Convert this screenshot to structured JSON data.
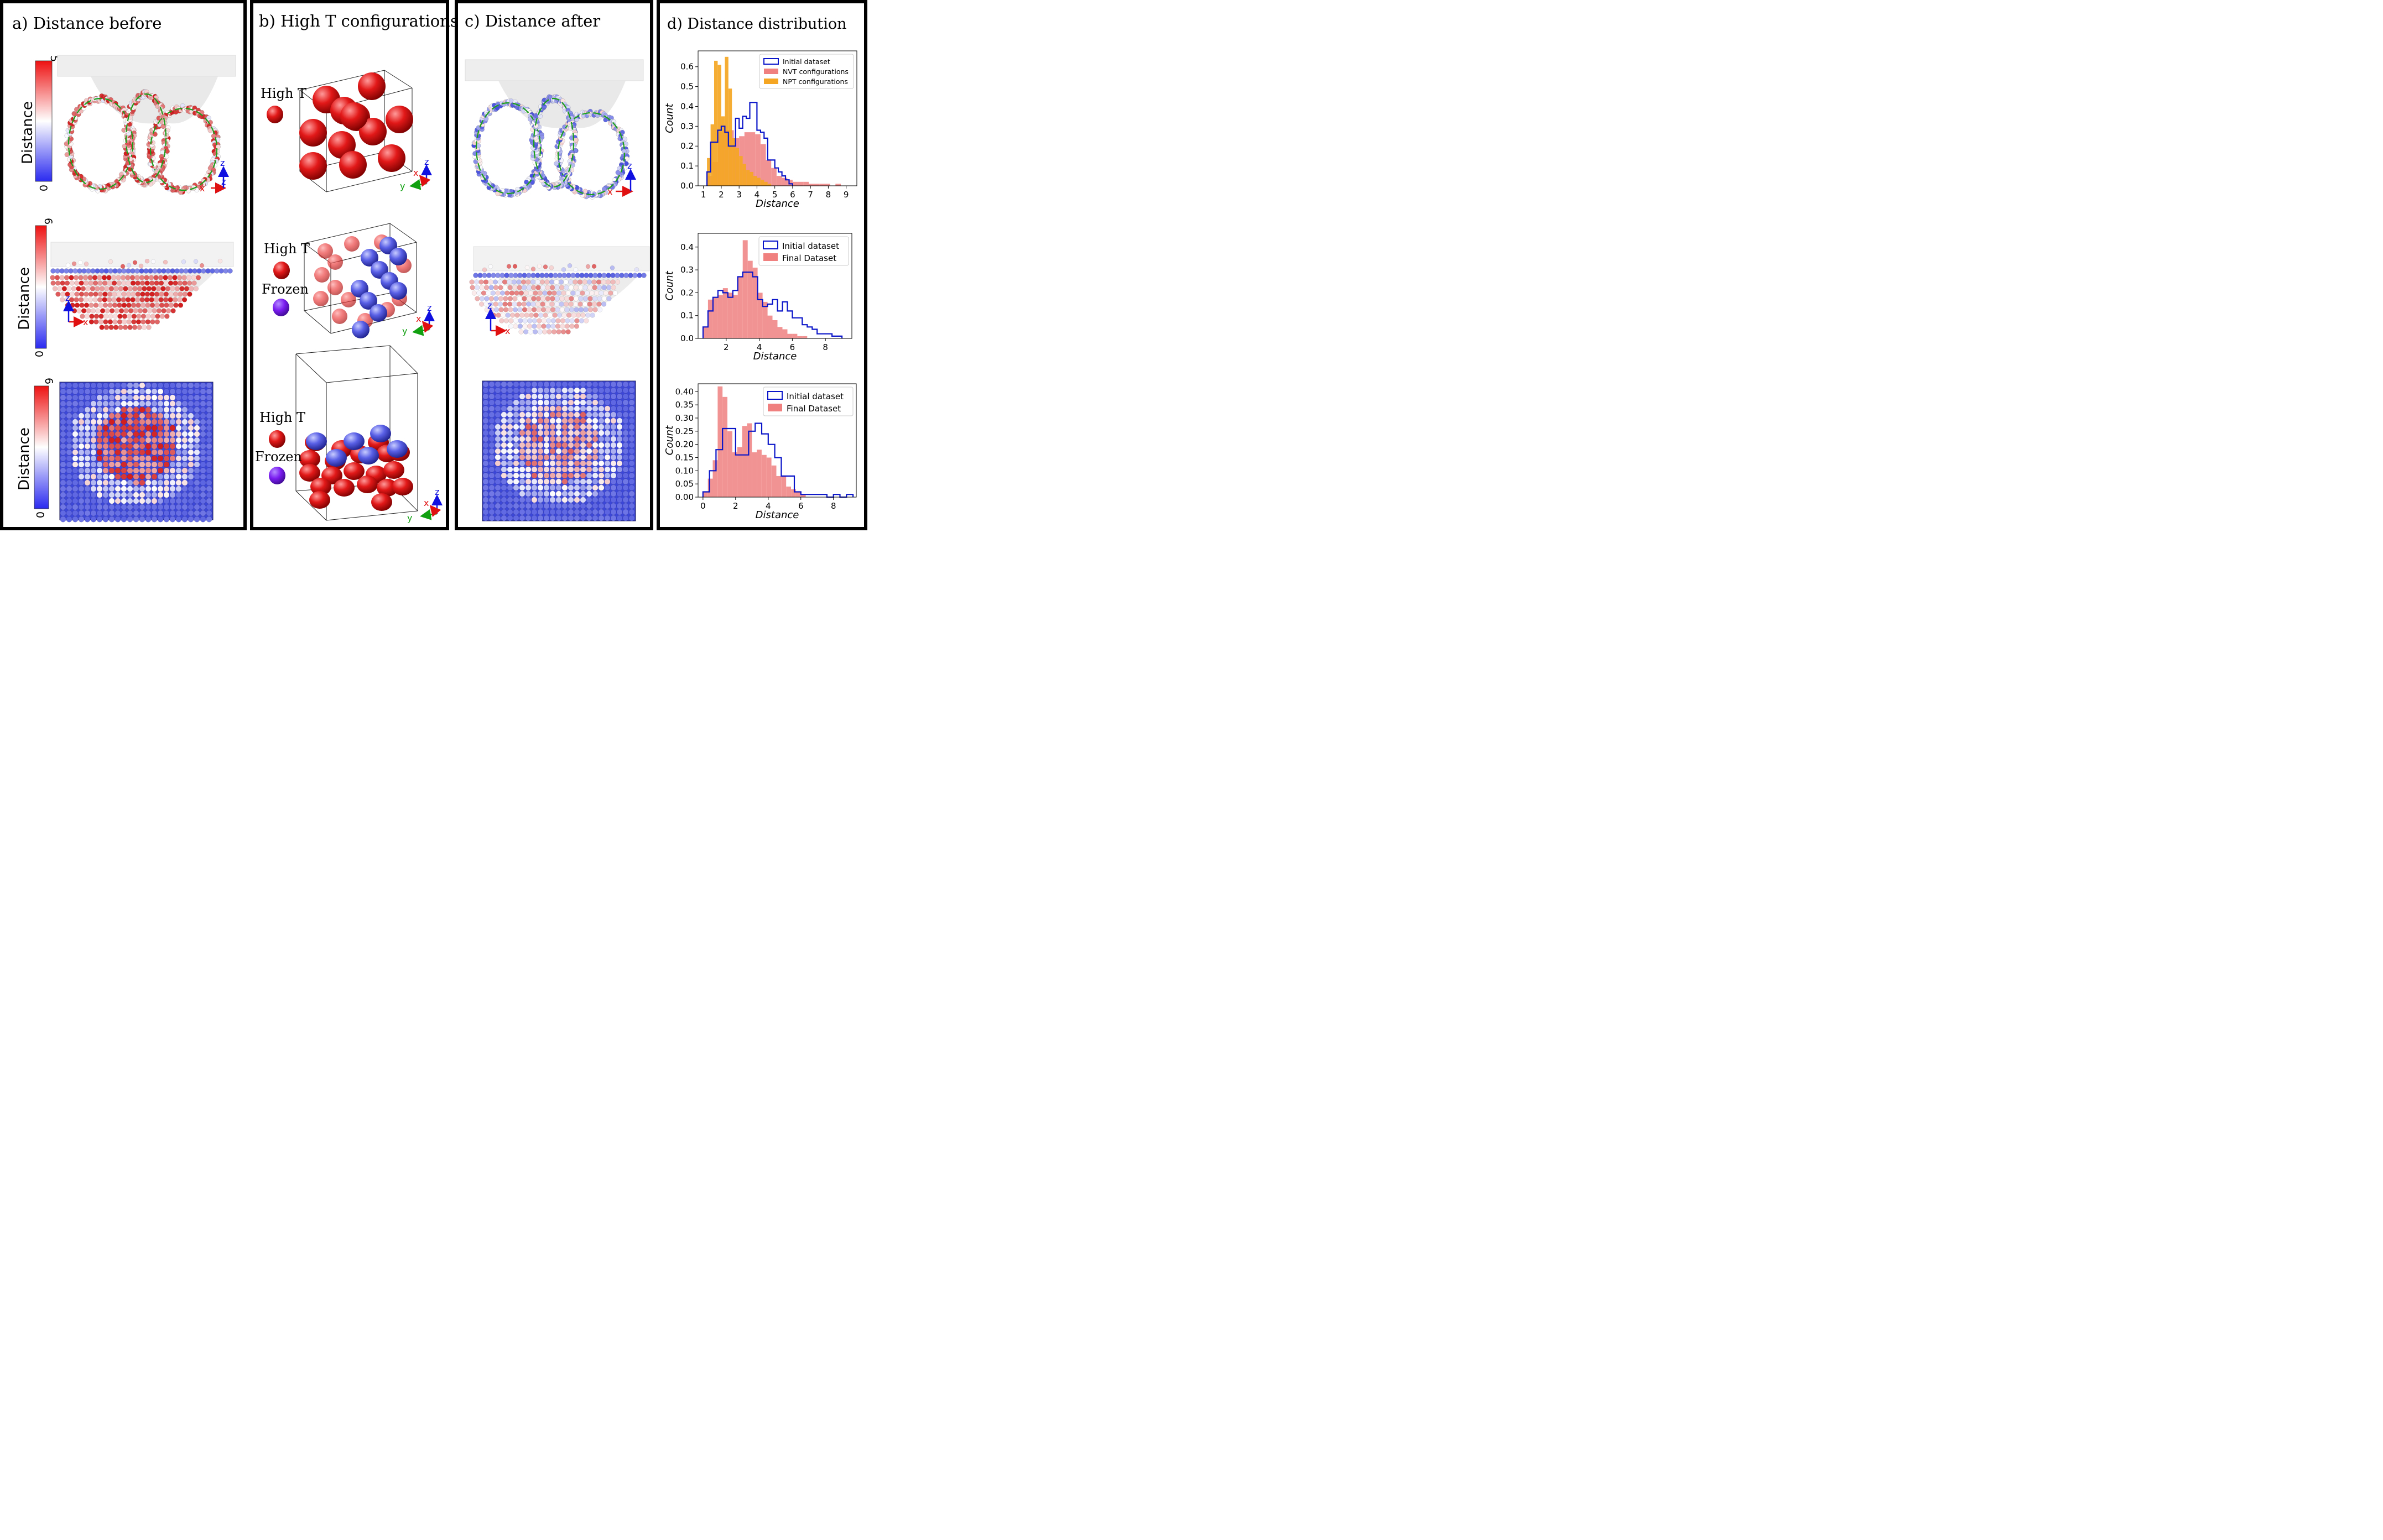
{
  "panels": {
    "a": {
      "title": "a) Distance before"
    },
    "b": {
      "title": "b) High T configurations"
    },
    "c": {
      "title": "c) Distance after"
    },
    "d": {
      "title": "d) Distance distribution"
    }
  },
  "colorbars": [
    {
      "label": "Distance",
      "min": "0",
      "max": "5"
    },
    {
      "label": "Distance",
      "min": "0",
      "max": "6"
    },
    {
      "label": "Distance",
      "min": "0",
      "max": "6"
    }
  ],
  "axes_labels": {
    "x": "x",
    "y": "y",
    "z": "z"
  },
  "legend_b": {
    "high_t": "High T",
    "frozen": "Frozen",
    "high_t_color": "#dd1111",
    "frozen_color": "#7a1cf0"
  },
  "colors": {
    "initial": "#0a14c8",
    "nvt": "#f08080",
    "npt": "#f5a623",
    "final": "#f08080",
    "atom_red": "#d42020",
    "atom_blue": "#5a5ee0",
    "substrate_blue": "#3c47d8"
  },
  "chart_data": [
    {
      "type": "histogram",
      "xlabel": "Distance",
      "ylabel": "Count",
      "xlim": [
        0.7,
        9.6
      ],
      "ylim": [
        0,
        0.68
      ],
      "xticks": [
        1,
        2,
        3,
        4,
        5,
        6,
        7,
        8,
        9
      ],
      "yticks": [
        0.0,
        0.1,
        0.2,
        0.3,
        0.4,
        0.5,
        0.6
      ],
      "ytick_labels": [
        "0.0",
        "0.1",
        "0.2",
        "0.3",
        "0.4",
        "0.5",
        "0.6"
      ],
      "legend_position": "top-right",
      "series": [
        {
          "name": "Initial dataset",
          "style": "step",
          "bin_edges": [
            1.2,
            1.4,
            1.6,
            1.8,
            2.0,
            2.2,
            2.4,
            2.6,
            2.8,
            3.0,
            3.2,
            3.4,
            3.6,
            3.8,
            4.0,
            4.2,
            4.4,
            4.6,
            4.8,
            5.0,
            5.2,
            5.4,
            5.6,
            5.8,
            6.0
          ],
          "values": [
            0.07,
            0.22,
            0.22,
            0.28,
            0.3,
            0.27,
            0.2,
            0.2,
            0.34,
            0.29,
            0.35,
            0.34,
            0.42,
            0.42,
            0.28,
            0.27,
            0.24,
            0.13,
            0.13,
            0.09,
            0.07,
            0.05,
            0.03,
            0.01
          ]
        },
        {
          "name": "NVT configurations",
          "style": "fill",
          "bin_edges": [
            1.2,
            1.5,
            1.8,
            2.1,
            2.4,
            2.7,
            3.0,
            3.3,
            3.6,
            3.9,
            4.2,
            4.5,
            4.8,
            5.1,
            5.4,
            5.7,
            6.0,
            6.3,
            6.6,
            6.9,
            7.2,
            7.5,
            7.8,
            8.1,
            8.4,
            8.7,
            9.0
          ],
          "values": [
            0.05,
            0.12,
            0.27,
            0.28,
            0.28,
            0.24,
            0.25,
            0.27,
            0.27,
            0.26,
            0.21,
            0.13,
            0.09,
            0.05,
            0.04,
            0.03,
            0.02,
            0.02,
            0.02,
            0.01,
            0.01,
            0.01,
            0.01,
            0.0,
            0.01,
            0.0
          ]
        },
        {
          "name": "NPT configurations",
          "style": "fill",
          "bin_edges": [
            1.2,
            1.4,
            1.6,
            1.8,
            2.0,
            2.2,
            2.4,
            2.6,
            2.8,
            3.0,
            3.2,
            3.4,
            3.6,
            3.8,
            4.0,
            4.2,
            4.4,
            4.6,
            4.8
          ],
          "values": [
            0.14,
            0.31,
            0.63,
            0.61,
            0.35,
            0.65,
            0.49,
            0.24,
            0.19,
            0.15,
            0.11,
            0.08,
            0.07,
            0.05,
            0.04,
            0.03,
            0.02,
            0.01
          ]
        }
      ]
    },
    {
      "type": "histogram",
      "xlabel": "Distance",
      "ylabel": "Count",
      "xlim": [
        0.3,
        9.6
      ],
      "ylim": [
        0,
        0.46
      ],
      "xticks": [
        2,
        4,
        6,
        8
      ],
      "yticks": [
        0.0,
        0.1,
        0.2,
        0.3,
        0.4
      ],
      "ytick_labels": [
        "0.0",
        "0.1",
        "0.2",
        "0.3",
        "0.4"
      ],
      "legend_position": "top-right",
      "series": [
        {
          "name": "Initial dataset",
          "style": "step",
          "bin_edges": [
            0.6,
            0.9,
            1.2,
            1.5,
            1.8,
            2.1,
            2.4,
            2.7,
            3.0,
            3.3,
            3.6,
            3.9,
            4.2,
            4.5,
            4.8,
            5.1,
            5.4,
            5.7,
            6.0,
            6.3,
            6.6,
            6.9,
            7.2,
            7.5,
            7.8,
            8.1,
            8.4,
            8.7,
            9.0
          ],
          "values": [
            0.05,
            0.12,
            0.18,
            0.21,
            0.2,
            0.18,
            0.21,
            0.27,
            0.29,
            0.29,
            0.27,
            0.17,
            0.14,
            0.15,
            0.17,
            0.12,
            0.16,
            0.12,
            0.09,
            0.09,
            0.06,
            0.05,
            0.04,
            0.02,
            0.02,
            0.02,
            0.01,
            0.01
          ]
        },
        {
          "name": "Final Dataset",
          "style": "fill",
          "bin_edges": [
            0.6,
            0.9,
            1.2,
            1.5,
            1.8,
            2.1,
            2.4,
            2.7,
            3.0,
            3.3,
            3.6,
            3.9,
            4.2,
            4.5,
            4.8,
            5.1,
            5.4,
            5.7,
            6.0,
            6.3,
            6.6,
            6.9
          ],
          "values": [
            0.05,
            0.17,
            0.18,
            0.19,
            0.22,
            0.2,
            0.19,
            0.27,
            0.43,
            0.34,
            0.31,
            0.2,
            0.16,
            0.1,
            0.08,
            0.05,
            0.04,
            0.02,
            0.02,
            0.01,
            0.01
          ]
        }
      ]
    },
    {
      "type": "histogram",
      "xlabel": "Distance",
      "ylabel": "Count",
      "xlim": [
        -0.3,
        9.4
      ],
      "ylim": [
        0,
        0.43
      ],
      "xticks": [
        0,
        2,
        4,
        6,
        8
      ],
      "yticks": [
        0.0,
        0.05,
        0.1,
        0.15,
        0.2,
        0.25,
        0.3,
        0.35,
        0.4
      ],
      "ytick_labels": [
        "0.00",
        "0.05",
        "0.10",
        "0.15",
        "0.20",
        "0.25",
        "0.30",
        "0.35",
        "0.40"
      ],
      "legend_position": "top-right",
      "series": [
        {
          "name": "Initial dataset",
          "style": "step",
          "bin_edges": [
            0.0,
            0.4,
            0.8,
            1.2,
            1.6,
            2.0,
            2.4,
            2.8,
            3.2,
            3.6,
            4.0,
            4.4,
            4.8,
            5.2,
            5.6,
            6.0,
            6.4,
            6.8,
            7.2,
            7.6,
            8.0,
            8.4,
            8.8,
            9.2
          ],
          "values": [
            0.02,
            0.1,
            0.18,
            0.26,
            0.26,
            0.16,
            0.16,
            0.25,
            0.28,
            0.24,
            0.2,
            0.15,
            0.08,
            0.08,
            0.02,
            0.01,
            0.01,
            0.01,
            0.01,
            0.0,
            0.01,
            0.0,
            0.01
          ]
        },
        {
          "name": "Final Dataset",
          "style": "fill",
          "bin_edges": [
            0.0,
            0.3,
            0.6,
            0.9,
            1.2,
            1.5,
            1.8,
            2.1,
            2.4,
            2.7,
            3.0,
            3.3,
            3.6,
            3.9,
            4.2,
            4.5,
            4.8,
            5.1,
            5.4,
            5.7,
            6.0,
            6.3
          ],
          "values": [
            0.02,
            0.07,
            0.14,
            0.42,
            0.38,
            0.25,
            0.17,
            0.19,
            0.27,
            0.28,
            0.17,
            0.18,
            0.16,
            0.15,
            0.12,
            0.08,
            0.08,
            0.04,
            0.03,
            0.02,
            0.01
          ]
        }
      ]
    }
  ]
}
